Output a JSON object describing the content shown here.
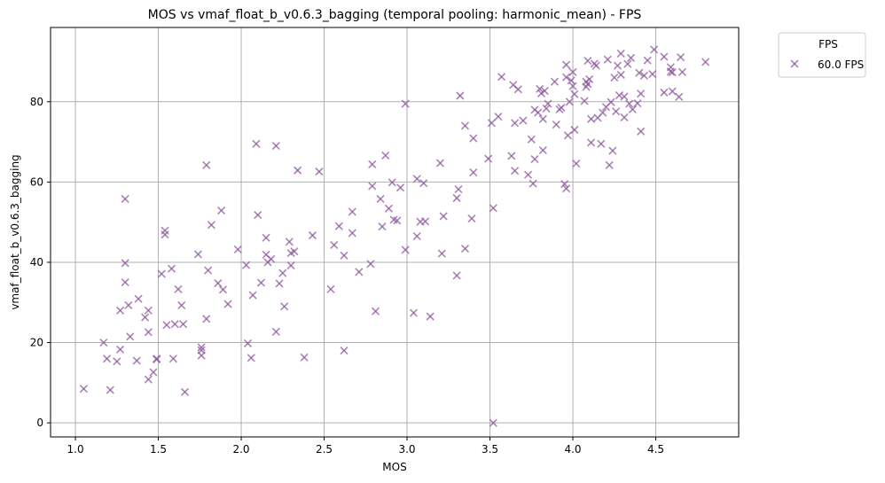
{
  "chart_data": {
    "type": "scatter",
    "title": "MOS vs vmaf_float_b_v0.6.3_bagging (temporal pooling: harmonic_mean) - FPS",
    "xlabel": "MOS",
    "ylabel": "vmaf_float_b_v0.6.3_bagging",
    "xlim": [
      0.85,
      5.0
    ],
    "ylim": [
      -3.5,
      98.5
    ],
    "xticks": [
      1.0,
      1.5,
      2.0,
      2.5,
      3.0,
      3.5,
      4.0,
      4.5
    ],
    "xtick_labels": [
      "1.0",
      "1.5",
      "2.0",
      "2.5",
      "3.0",
      "3.5",
      "4.0",
      "4.5"
    ],
    "yticks": [
      0,
      20,
      40,
      60,
      80
    ],
    "ytick_labels": [
      "0",
      "20",
      "40",
      "60",
      "80"
    ],
    "grid": true,
    "legend": {
      "title": "FPS",
      "position": "outside-top-right"
    },
    "marker_color": "#8e5a9e",
    "series": [
      {
        "name": "60.0 FPS",
        "points": [
          [
            1.05,
            8.5
          ],
          [
            1.17,
            20.0
          ],
          [
            1.19,
            16.0
          ],
          [
            1.21,
            8.2
          ],
          [
            1.25,
            15.3
          ],
          [
            1.27,
            18.3
          ],
          [
            1.27,
            28.0
          ],
          [
            1.3,
            55.8
          ],
          [
            1.3,
            39.8
          ],
          [
            1.3,
            35.0
          ],
          [
            1.32,
            29.3
          ],
          [
            1.33,
            21.5
          ],
          [
            1.37,
            15.5
          ],
          [
            1.38,
            30.9
          ],
          [
            1.42,
            26.3
          ],
          [
            1.44,
            28.0
          ],
          [
            1.44,
            22.6
          ],
          [
            1.44,
            10.8
          ],
          [
            1.47,
            12.6
          ],
          [
            1.49,
            15.8
          ],
          [
            1.49,
            16.0
          ],
          [
            1.52,
            37.1
          ],
          [
            1.54,
            47.9
          ],
          [
            1.54,
            46.9
          ],
          [
            1.55,
            24.4
          ],
          [
            1.58,
            38.4
          ],
          [
            1.59,
            16.0
          ],
          [
            1.6,
            24.6
          ],
          [
            1.62,
            33.3
          ],
          [
            1.64,
            29.3
          ],
          [
            1.65,
            24.6
          ],
          [
            1.66,
            7.7
          ],
          [
            1.74,
            42.0
          ],
          [
            1.76,
            18.8
          ],
          [
            1.76,
            18.1
          ],
          [
            1.76,
            16.8
          ],
          [
            1.79,
            64.2
          ],
          [
            1.79,
            25.9
          ],
          [
            1.8,
            38.0
          ],
          [
            1.82,
            49.3
          ],
          [
            1.86,
            34.8
          ],
          [
            1.88,
            52.9
          ],
          [
            1.89,
            33.2
          ],
          [
            1.92,
            29.6
          ],
          [
            1.98,
            43.2
          ],
          [
            2.03,
            39.3
          ],
          [
            2.04,
            19.8
          ],
          [
            2.06,
            16.2
          ],
          [
            2.07,
            31.8
          ],
          [
            2.09,
            69.5
          ],
          [
            2.1,
            51.8
          ],
          [
            2.12,
            34.9
          ],
          [
            2.15,
            46.1
          ],
          [
            2.15,
            41.9
          ],
          [
            2.16,
            40.0
          ],
          [
            2.18,
            40.8
          ],
          [
            2.21,
            69.0
          ],
          [
            2.21,
            22.7
          ],
          [
            2.23,
            34.7
          ],
          [
            2.25,
            37.3
          ],
          [
            2.26,
            29.0
          ],
          [
            2.29,
            45.1
          ],
          [
            2.3,
            42.3
          ],
          [
            2.3,
            39.2
          ],
          [
            2.32,
            42.7
          ],
          [
            2.34,
            62.9
          ],
          [
            2.38,
            16.3
          ],
          [
            2.43,
            46.7
          ],
          [
            2.47,
            62.6
          ],
          [
            2.54,
            33.3
          ],
          [
            2.56,
            44.3
          ],
          [
            2.59,
            49.0
          ],
          [
            2.62,
            41.7
          ],
          [
            2.62,
            18.0
          ],
          [
            2.67,
            47.3
          ],
          [
            2.67,
            52.6
          ],
          [
            2.71,
            37.6
          ],
          [
            2.78,
            39.6
          ],
          [
            2.79,
            59.0
          ],
          [
            2.79,
            64.4
          ],
          [
            2.81,
            27.8
          ],
          [
            2.84,
            55.8
          ],
          [
            2.85,
            48.9
          ],
          [
            2.87,
            66.6
          ],
          [
            2.89,
            53.4
          ],
          [
            2.91,
            59.9
          ],
          [
            2.92,
            50.6
          ],
          [
            2.94,
            50.4
          ],
          [
            2.96,
            58.6
          ],
          [
            2.99,
            43.1
          ],
          [
            2.99,
            79.5
          ],
          [
            3.04,
            27.4
          ],
          [
            3.06,
            46.5
          ],
          [
            3.06,
            60.8
          ],
          [
            3.08,
            50.1
          ],
          [
            3.1,
            59.7
          ],
          [
            3.11,
            50.2
          ],
          [
            3.14,
            26.5
          ],
          [
            3.2,
            64.7
          ],
          [
            3.21,
            42.2
          ],
          [
            3.22,
            51.5
          ],
          [
            3.3,
            56.0
          ],
          [
            3.3,
            36.7
          ],
          [
            3.31,
            58.2
          ],
          [
            3.32,
            81.5
          ],
          [
            3.35,
            74.0
          ],
          [
            3.35,
            43.4
          ],
          [
            3.39,
            50.9
          ],
          [
            3.4,
            70.9
          ],
          [
            3.4,
            62.4
          ],
          [
            3.49,
            65.8
          ],
          [
            3.51,
            74.7
          ],
          [
            3.52,
            53.5
          ],
          [
            3.52,
            0.0
          ],
          [
            3.55,
            76.3
          ],
          [
            3.57,
            86.2
          ],
          [
            3.63,
            66.5
          ],
          [
            3.64,
            84.2
          ],
          [
            3.65,
            62.8
          ],
          [
            3.65,
            74.7
          ],
          [
            3.67,
            83.1
          ],
          [
            3.7,
            75.3
          ],
          [
            3.73,
            61.8
          ],
          [
            3.75,
            70.6
          ],
          [
            3.76,
            59.6
          ],
          [
            3.77,
            65.7
          ],
          [
            3.77,
            78.0
          ],
          [
            3.79,
            77.3
          ],
          [
            3.8,
            83.2
          ],
          [
            3.81,
            82.1
          ],
          [
            3.82,
            67.9
          ],
          [
            3.82,
            75.7
          ],
          [
            3.83,
            82.7
          ],
          [
            3.84,
            78.3
          ],
          [
            3.85,
            79.5
          ],
          [
            3.89,
            85.0
          ],
          [
            3.9,
            74.3
          ],
          [
            3.92,
            78.1
          ],
          [
            3.93,
            78.5
          ],
          [
            3.95,
            59.5
          ],
          [
            3.96,
            89.2
          ],
          [
            3.96,
            86.1
          ],
          [
            3.96,
            58.4
          ],
          [
            3.97,
            71.6
          ],
          [
            3.98,
            80.0
          ],
          [
            3.99,
            85.3
          ],
          [
            4.0,
            87.4
          ],
          [
            4.0,
            83.9
          ],
          [
            4.01,
            73.0
          ],
          [
            4.01,
            81.9
          ],
          [
            4.02,
            64.6
          ],
          [
            4.07,
            80.2
          ],
          [
            4.08,
            85.0
          ],
          [
            4.08,
            83.7
          ],
          [
            4.09,
            90.2
          ],
          [
            4.09,
            84.4
          ],
          [
            4.1,
            85.6
          ],
          [
            4.11,
            75.7
          ],
          [
            4.11,
            69.8
          ],
          [
            4.13,
            89.5
          ],
          [
            4.14,
            89.0
          ],
          [
            4.15,
            76.0
          ],
          [
            4.17,
            69.5
          ],
          [
            4.18,
            77.3
          ],
          [
            4.2,
            78.7
          ],
          [
            4.21,
            90.5
          ],
          [
            4.22,
            64.2
          ],
          [
            4.23,
            79.9
          ],
          [
            4.24,
            67.8
          ],
          [
            4.25,
            86.0
          ],
          [
            4.26,
            77.6
          ],
          [
            4.27,
            89.0
          ],
          [
            4.28,
            81.6
          ],
          [
            4.29,
            92.0
          ],
          [
            4.29,
            86.7
          ],
          [
            4.31,
            76.1
          ],
          [
            4.31,
            81.3
          ],
          [
            4.33,
            89.4
          ],
          [
            4.34,
            79.5
          ],
          [
            4.35,
            90.9
          ],
          [
            4.36,
            78.1
          ],
          [
            4.39,
            79.6
          ],
          [
            4.4,
            87.2
          ],
          [
            4.41,
            82.0
          ],
          [
            4.41,
            72.6
          ],
          [
            4.43,
            86.5
          ],
          [
            4.45,
            90.3
          ],
          [
            4.48,
            86.9
          ],
          [
            4.49,
            93.0
          ],
          [
            4.55,
            82.3
          ],
          [
            4.55,
            91.2
          ],
          [
            4.59,
            88.6
          ],
          [
            4.59,
            87.5
          ],
          [
            4.6,
            87.3
          ],
          [
            4.6,
            82.6
          ],
          [
            4.64,
            81.2
          ],
          [
            4.65,
            91.1
          ],
          [
            4.66,
            87.4
          ],
          [
            4.8,
            89.9
          ]
        ]
      }
    ]
  }
}
